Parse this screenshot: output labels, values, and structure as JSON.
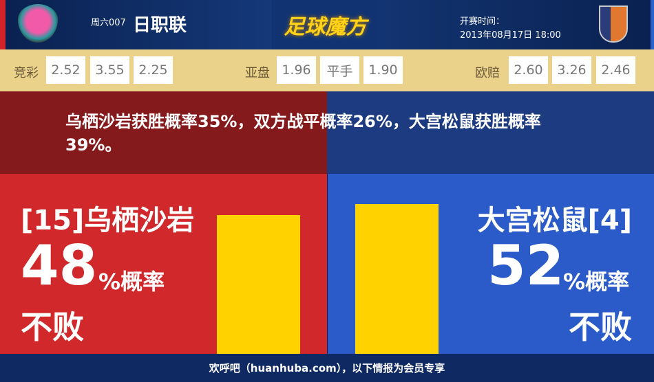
{
  "header": {
    "round": "周六007",
    "league": "日职联",
    "brand": "足球魔方",
    "time_label": "开赛时间：",
    "time_value": "2013年08月17日 18:00"
  },
  "odds": {
    "jingcai": {
      "label": "竞彩",
      "values": [
        "2.52",
        "3.55",
        "2.25"
      ]
    },
    "yapan": {
      "label": "亚盘",
      "values": [
        "1.96",
        "平手",
        "1.90"
      ]
    },
    "oupei": {
      "label": "欧赔",
      "values": [
        "2.60",
        "3.26",
        "2.46"
      ]
    }
  },
  "summary": "乌栖沙岩获胜概率35%，双方战平概率26%，大宫松鼠获胜概率39%。",
  "home": {
    "name": "[15]乌栖沙岩",
    "percent": "48",
    "percent_value": 48,
    "suffix": "%概率",
    "outcome": "不败",
    "color": "#d1292b"
  },
  "away": {
    "name": "大宫松鼠[4]",
    "percent": "52",
    "percent_value": 52,
    "suffix": "%概率",
    "outcome": "不败",
    "color": "#2b5bc8"
  },
  "bar_color": "#ffd200",
  "footer": "欢呼吧（huanhuba.com），以下情报为会员专享"
}
